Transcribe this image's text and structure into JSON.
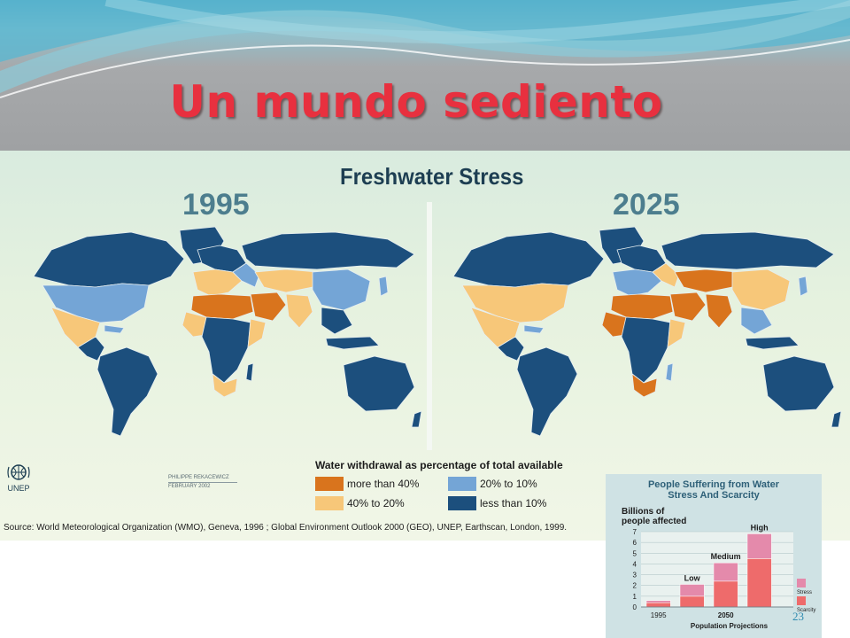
{
  "title": "Un mundo sediento",
  "map": {
    "heading": "Freshwater Stress",
    "years": [
      "1995",
      "2025"
    ],
    "legend_title": "Water withdrawal as percentage of total available",
    "legend": [
      {
        "label": "more than 40%",
        "color": "#d9741d"
      },
      {
        "label": "40% to 20%",
        "color": "#f7c779"
      },
      {
        "label": "20% to 10%",
        "color": "#74a5d6"
      },
      {
        "label": "less than 10%",
        "color": "#1c4f7d"
      }
    ],
    "logo_text": "UNEP",
    "signature": [
      "PHILIPPE REKACEWICZ",
      "FEBRUARY 2002"
    ],
    "source": "Source: World Meteorological Organization (WMO), Geneva, 1996 ; Global Environment Outlook 2000 (GEO), UNEP, Earthscan, London, 1999."
  },
  "inset": {
    "title": "People Suffering from Water Stress And Scarcity",
    "ylabel": "Billions of people affected",
    "yticks": [
      "0",
      "1",
      "2",
      "3",
      "4",
      "5",
      "6",
      "7"
    ],
    "x_labels": [
      "1995",
      "2050"
    ],
    "projection_label": "Population Projections",
    "scenario_labels": [
      "Low",
      "Medium",
      "High"
    ],
    "legend": [
      "Stress",
      "Scarcity"
    ],
    "colors": {
      "stress": "#e48aab",
      "scarcity": "#ee6b6b",
      "bg": "#cfe2e4"
    }
  },
  "chart_data": {
    "type": "bar",
    "categories": [
      "1995",
      "Low",
      "Medium",
      "High"
    ],
    "series": [
      {
        "name": "Scarcity",
        "values": [
          0.4,
          1.0,
          2.4,
          4.5
        ]
      },
      {
        "name": "Stress",
        "values": [
          0.2,
          1.1,
          1.7,
          2.3
        ]
      }
    ],
    "title": "People Suffering from Water Stress And Scarcity",
    "ylabel": "Billions of people affected",
    "ylim": [
      0,
      7
    ],
    "stacked": true
  },
  "page_number": "23"
}
